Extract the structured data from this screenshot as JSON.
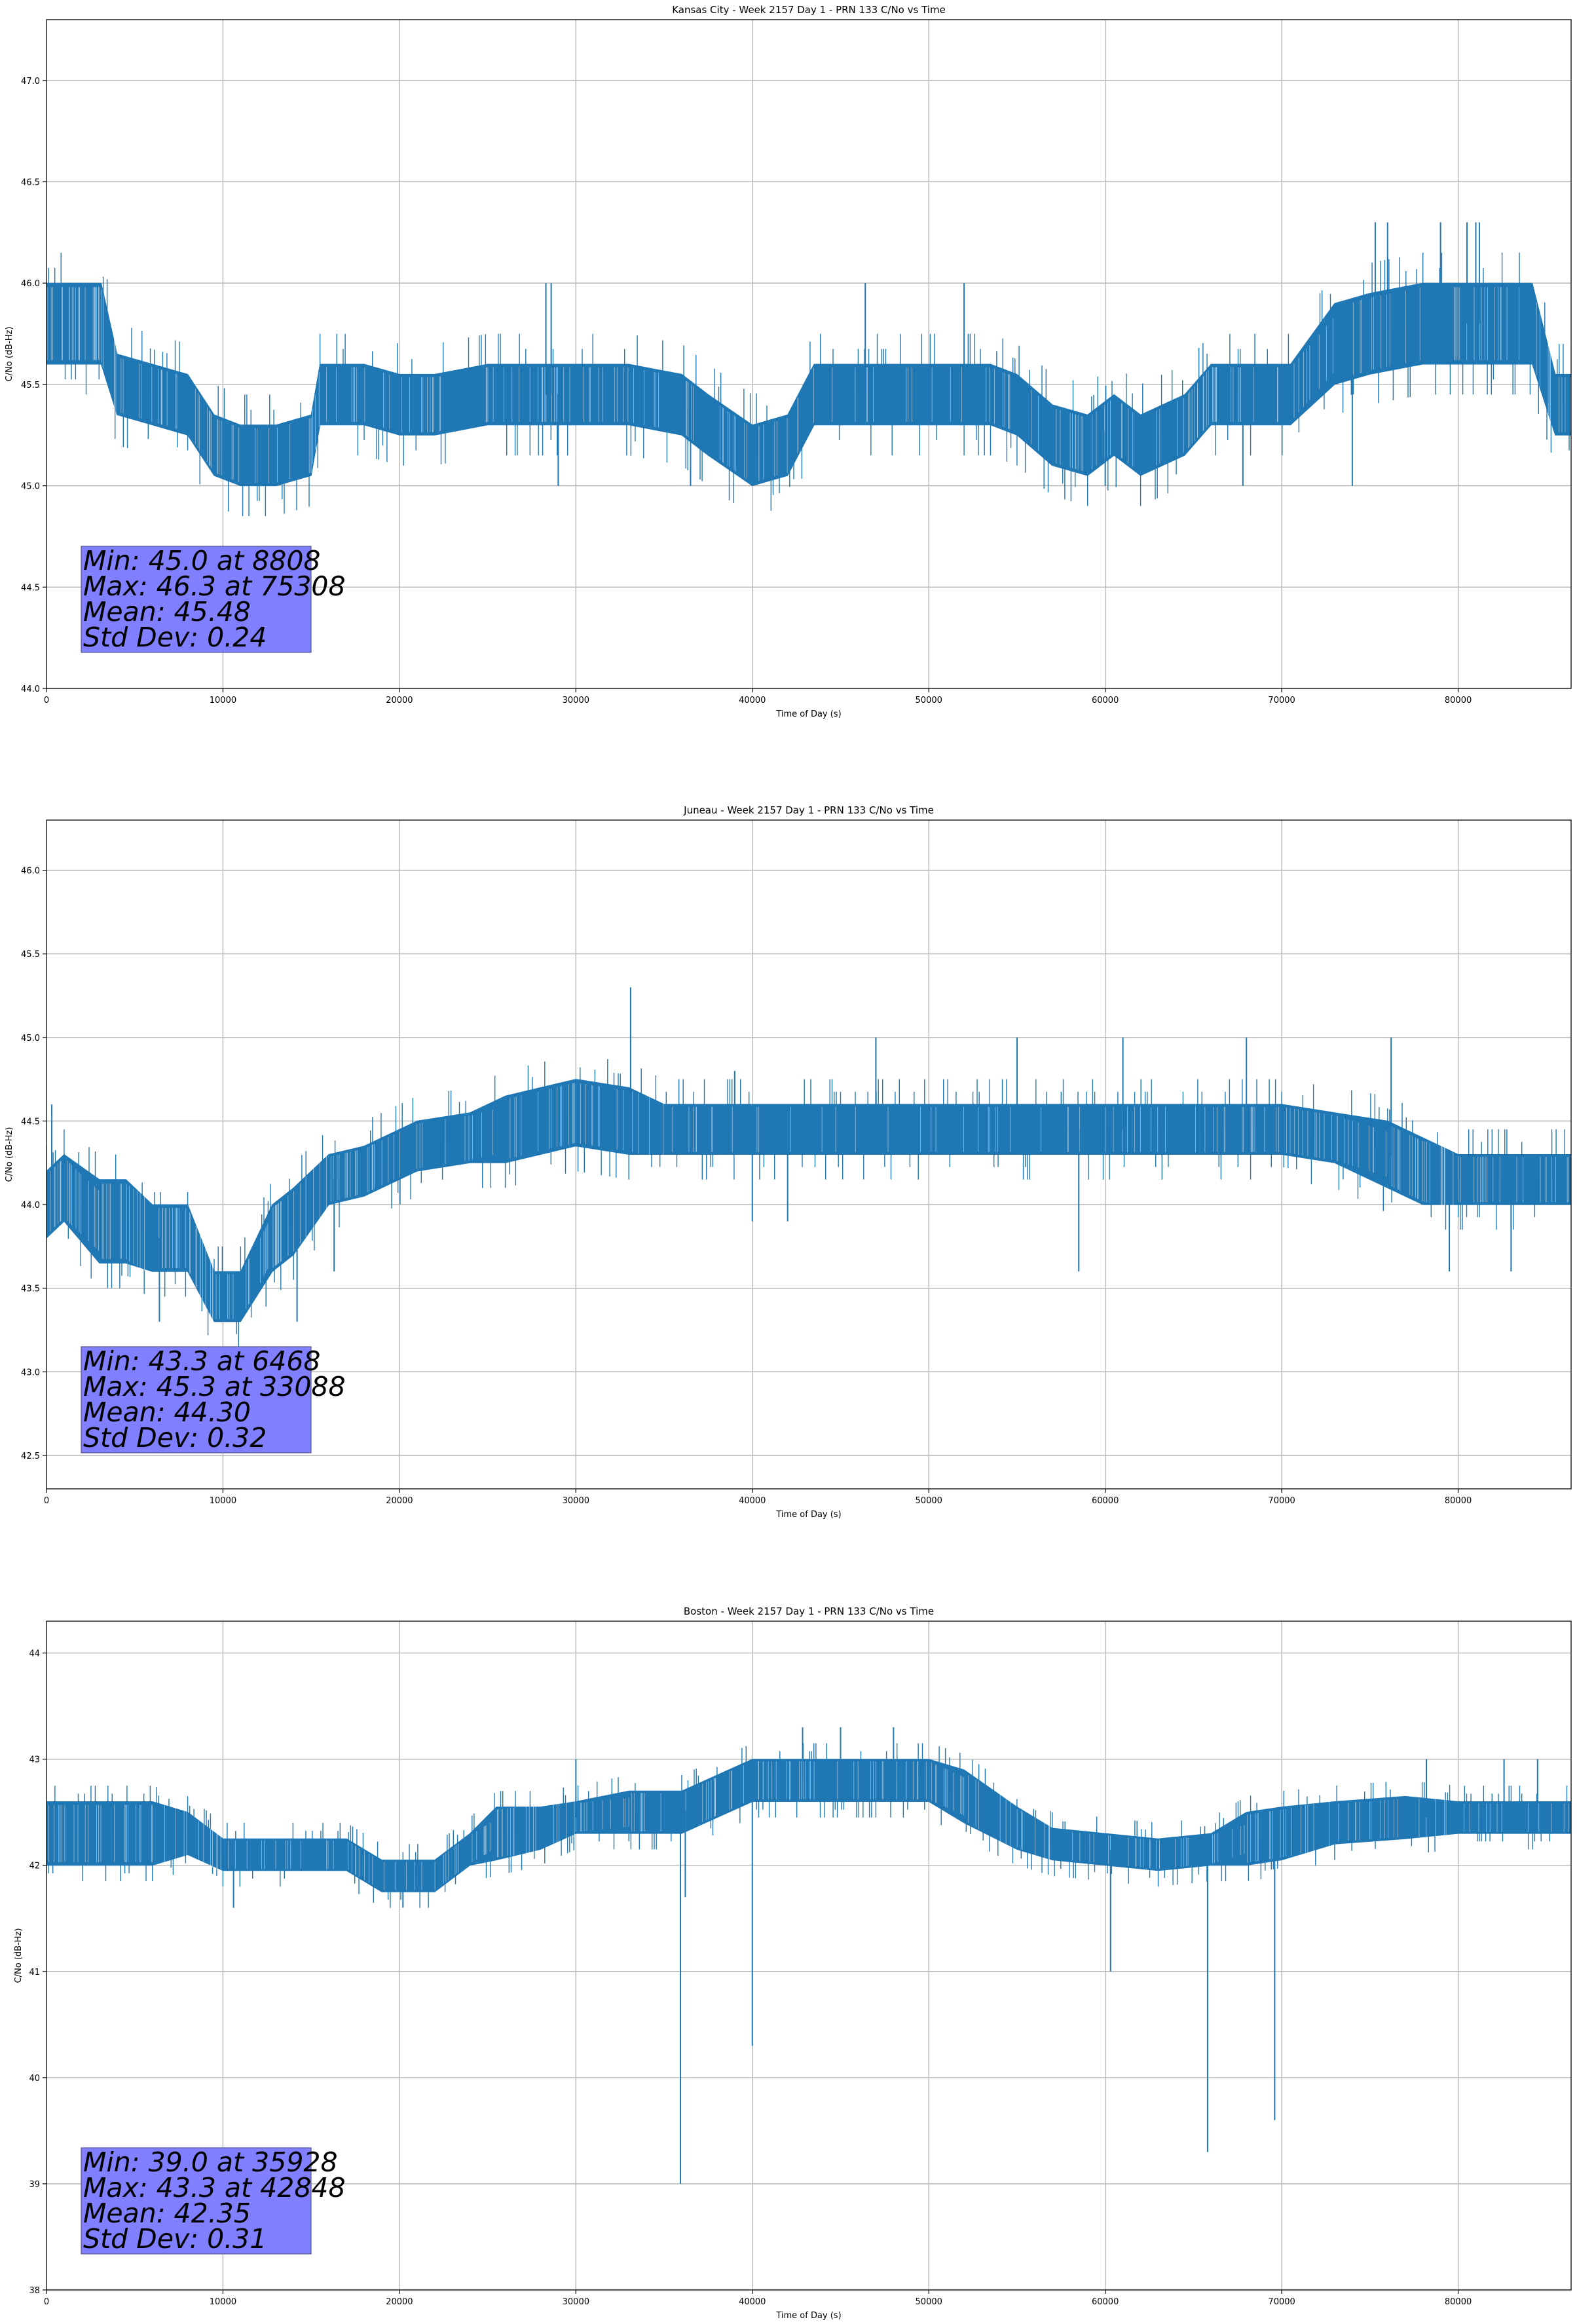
{
  "chart_data": [
    {
      "type": "line",
      "title": "Kansas City - Week 2157 Day 1 - PRN 133 C/No vs Time",
      "xlabel": "Time of Day (s)",
      "ylabel": "C/No (dB-Hz)",
      "xlim": [
        0,
        86400
      ],
      "ylim": [
        44.0,
        47.3
      ],
      "xticks": [
        0,
        10000,
        20000,
        30000,
        40000,
        50000,
        60000,
        70000,
        80000
      ],
      "yticks": [
        44.0,
        44.5,
        45.0,
        45.5,
        46.0,
        46.5,
        47.0
      ],
      "ytick_decimals": 1,
      "grid": true,
      "series_color": "#1f77b4",
      "series": [
        {
          "name": "C/No",
          "x": [
            0,
            2000,
            3100,
            4000,
            6000,
            8000,
            9500,
            11000,
            13000,
            15000,
            15500,
            18000,
            20000,
            22000,
            25000,
            28000,
            30000,
            33000,
            36000,
            37500,
            40000,
            42000,
            43500,
            46000,
            49000,
            52000,
            53500,
            55000,
            57000,
            59000,
            60500,
            62000,
            64500,
            66000,
            68000,
            70500,
            73000,
            75000,
            78000,
            80500,
            82000,
            84200,
            85500,
            86400
          ],
          "values": [
            45.8,
            45.8,
            45.8,
            45.5,
            45.45,
            45.4,
            45.2,
            45.15,
            45.15,
            45.2,
            45.45,
            45.45,
            45.4,
            45.4,
            45.45,
            45.45,
            45.45,
            45.45,
            45.4,
            45.3,
            45.15,
            45.2,
            45.45,
            45.45,
            45.45,
            45.45,
            45.45,
            45.4,
            45.25,
            45.2,
            45.3,
            45.2,
            45.3,
            45.45,
            45.45,
            45.45,
            45.7,
            45.75,
            45.8,
            45.8,
            45.8,
            45.8,
            45.4,
            45.4
          ],
          "band": [
            0.2,
            0.2,
            0.2,
            0.15,
            0.15,
            0.15,
            0.15,
            0.15,
            0.15,
            0.15,
            0.15,
            0.15,
            0.15,
            0.15,
            0.15,
            0.15,
            0.15,
            0.15,
            0.15,
            0.15,
            0.15,
            0.15,
            0.15,
            0.15,
            0.15,
            0.15,
            0.15,
            0.15,
            0.15,
            0.15,
            0.15,
            0.15,
            0.15,
            0.15,
            0.15,
            0.15,
            0.2,
            0.2,
            0.2,
            0.2,
            0.2,
            0.2,
            0.15,
            0.15
          ]
        }
      ],
      "spikes": [
        [
          28300,
          46.0
        ],
        [
          28600,
          46.0
        ],
        [
          29000,
          45.0
        ],
        [
          36500,
          45.0
        ],
        [
          46400,
          46.0
        ],
        [
          52000,
          46.0
        ],
        [
          60000,
          45.0
        ],
        [
          67800,
          45.0
        ],
        [
          74000,
          45.0
        ],
        [
          75300,
          46.3
        ],
        [
          76000,
          46.3
        ],
        [
          79000,
          46.3
        ],
        [
          80500,
          46.3
        ],
        [
          81000,
          46.3
        ],
        [
          81200,
          46.3
        ]
      ],
      "stats": [
        "Min: 45.0 at 8808",
        "Max: 46.3 at 75308",
        "Mean: 45.48",
        "Std Dev: 0.24"
      ]
    },
    {
      "type": "line",
      "title": "Juneau - Week 2157 Day 1 - PRN 133 C/No vs Time",
      "xlabel": "Time of Day (s)",
      "ylabel": "C/No (dB-Hz)",
      "xlim": [
        0,
        86400
      ],
      "ylim": [
        42.3,
        46.3
      ],
      "xticks": [
        0,
        10000,
        20000,
        30000,
        40000,
        50000,
        60000,
        70000,
        80000
      ],
      "yticks": [
        42.5,
        43.0,
        43.5,
        44.0,
        44.5,
        45.0,
        45.5,
        46.0
      ],
      "ytick_decimals": 1,
      "grid": true,
      "series_color": "#1f77b4",
      "series": [
        {
          "name": "C/No",
          "x": [
            0,
            1000,
            3000,
            4500,
            6000,
            8000,
            9500,
            11000,
            12800,
            14000,
            16000,
            18000,
            21000,
            24000,
            26000,
            28000,
            30000,
            33000,
            35000,
            38000,
            45000,
            50000,
            55000,
            60000,
            65000,
            68000,
            70000,
            73000,
            76000,
            78000,
            80000,
            83000,
            86400
          ],
          "values": [
            44.0,
            44.1,
            43.9,
            43.9,
            43.8,
            43.8,
            43.45,
            43.45,
            43.8,
            43.9,
            44.15,
            44.2,
            44.35,
            44.4,
            44.45,
            44.5,
            44.55,
            44.5,
            44.45,
            44.45,
            44.45,
            44.45,
            44.45,
            44.45,
            44.45,
            44.45,
            44.45,
            44.4,
            44.3,
            44.2,
            44.15,
            44.15,
            44.15
          ],
          "band": [
            0.2,
            0.2,
            0.25,
            0.25,
            0.2,
            0.2,
            0.15,
            0.15,
            0.2,
            0.2,
            0.15,
            0.15,
            0.15,
            0.15,
            0.2,
            0.2,
            0.2,
            0.2,
            0.15,
            0.15,
            0.15,
            0.15,
            0.15,
            0.15,
            0.15,
            0.15,
            0.15,
            0.15,
            0.2,
            0.2,
            0.15,
            0.15,
            0.15
          ]
        }
      ],
      "spikes": [
        [
          300,
          44.6
        ],
        [
          6400,
          43.3
        ],
        [
          14200,
          43.3
        ],
        [
          16300,
          43.6
        ],
        [
          33100,
          45.3
        ],
        [
          39000,
          44.8
        ],
        [
          40000,
          43.9
        ],
        [
          42000,
          43.9
        ],
        [
          47000,
          45.0
        ],
        [
          55000,
          45.0
        ],
        [
          58500,
          43.6
        ],
        [
          61000,
          45.0
        ],
        [
          68000,
          45.0
        ],
        [
          76200,
          45.0
        ],
        [
          79500,
          43.6
        ],
        [
          83000,
          43.6
        ]
      ],
      "stats": [
        "Min: 43.3 at 6468",
        "Max: 45.3 at 33088",
        "Mean: 44.30",
        "Std Dev: 0.32"
      ]
    },
    {
      "type": "line",
      "title": "Boston - Week 2157 Day 1 - PRN 133 C/No vs Time",
      "xlabel": "Time of Day (s)",
      "ylabel": "C/No (dB-Hz)",
      "xlim": [
        0,
        86400
      ],
      "ylim": [
        38.0,
        44.3
      ],
      "xticks": [
        0,
        10000,
        20000,
        30000,
        40000,
        50000,
        60000,
        70000,
        80000
      ],
      "yticks": [
        38,
        39,
        40,
        41,
        42,
        43,
        44
      ],
      "ytick_decimals": 0,
      "grid": true,
      "series_color": "#1f77b4",
      "series": [
        {
          "name": "C/No",
          "x": [
            0,
            3000,
            6000,
            8000,
            10000,
            13000,
            17000,
            19000,
            22000,
            24000,
            25500,
            28000,
            30000,
            33000,
            36000,
            38000,
            40000,
            43000,
            47000,
            50000,
            52000,
            55000,
            57000,
            60000,
            63000,
            66000,
            68000,
            70000,
            73000,
            77000,
            80000,
            83000,
            86400
          ],
          "values": [
            42.3,
            42.3,
            42.3,
            42.3,
            42.1,
            42.1,
            42.1,
            41.9,
            41.9,
            42.15,
            42.3,
            42.35,
            42.45,
            42.5,
            42.5,
            42.65,
            42.8,
            42.8,
            42.8,
            42.8,
            42.65,
            42.35,
            42.2,
            42.15,
            42.1,
            42.15,
            42.25,
            42.3,
            42.4,
            42.45,
            42.45,
            42.45,
            42.45
          ],
          "band": [
            0.3,
            0.3,
            0.3,
            0.2,
            0.15,
            0.15,
            0.15,
            0.15,
            0.15,
            0.15,
            0.25,
            0.2,
            0.15,
            0.2,
            0.2,
            0.2,
            0.2,
            0.2,
            0.2,
            0.2,
            0.25,
            0.2,
            0.15,
            0.15,
            0.15,
            0.15,
            0.25,
            0.25,
            0.2,
            0.2,
            0.15,
            0.15,
            0.15
          ]
        }
      ],
      "spikes": [
        [
          10600,
          41.6
        ],
        [
          20200,
          41.6
        ],
        [
          30000,
          43.0
        ],
        [
          35928,
          39.0
        ],
        [
          36200,
          41.7
        ],
        [
          40000,
          40.3
        ],
        [
          42848,
          43.3
        ],
        [
          45000,
          43.3
        ],
        [
          48000,
          43.3
        ],
        [
          60300,
          41.0
        ],
        [
          65800,
          39.3
        ],
        [
          69600,
          39.6
        ],
        [
          78200,
          43.0
        ],
        [
          82600,
          43.0
        ],
        [
          84500,
          43.0
        ]
      ],
      "stats": [
        "Min: 39.0 at 35928",
        "Max: 43.3 at 42848",
        "Mean: 42.35",
        "Std Dev: 0.31"
      ]
    }
  ]
}
